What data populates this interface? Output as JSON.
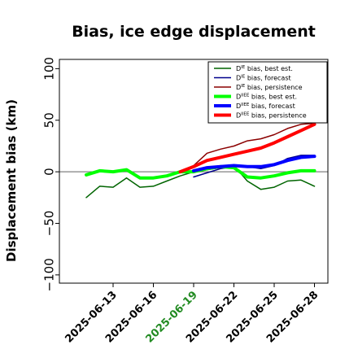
{
  "chart_data": {
    "type": "line",
    "title": "Bias, ice edge displacement",
    "xlabel": "",
    "ylabel": "Displacement bias (km)",
    "ylim": [
      -108,
      109
    ],
    "yticks": [
      -100,
      -50,
      0,
      50,
      100
    ],
    "xlim": [
      "2025-06-09",
      "2025-06-29"
    ],
    "xticks": [
      "2025-06-13",
      "2025-06-16",
      "2025-06-19",
      "2025-06-22",
      "2025-06-25",
      "2025-06-28"
    ],
    "highlighted_xtick": "2025-06-19",
    "highlight_color": "#228b22",
    "zero_line": true,
    "grid": false,
    "legend_position": "top-right",
    "series": [
      {
        "name_main": "D",
        "name_sup": "IE",
        "name_rest": " bias, best est.",
        "color": "#006400",
        "width": 1.5,
        "x": [
          "2025-06-11",
          "2025-06-12",
          "2025-06-13",
          "2025-06-14",
          "2025-06-15",
          "2025-06-16",
          "2025-06-17",
          "2025-06-18",
          "2025-06-19",
          "2025-06-20",
          "2025-06-21",
          "2025-06-22",
          "2025-06-23",
          "2025-06-24",
          "2025-06-25",
          "2025-06-26",
          "2025-06-27",
          "2025-06-28"
        ],
        "y": [
          -25,
          -14,
          -15,
          -6,
          -15,
          -14,
          -9,
          -4,
          0,
          2,
          4,
          6,
          -9,
          -17,
          -15,
          -9,
          -8,
          -14
        ]
      },
      {
        "name_main": "D",
        "name_sup": "IE",
        "name_rest": " bias, forecast",
        "color": "#00008b",
        "width": 1.5,
        "x": [
          "2025-06-19",
          "2025-06-20",
          "2025-06-21",
          "2025-06-22",
          "2025-06-23",
          "2025-06-24",
          "2025-06-25",
          "2025-06-26",
          "2025-06-27",
          "2025-06-28"
        ],
        "y": [
          -5,
          -1,
          3,
          5,
          5,
          3,
          6,
          13,
          16,
          16
        ]
      },
      {
        "name_main": "D",
        "name_sup": "IE",
        "name_rest": " bias, persistence",
        "color": "#8b0000",
        "width": 1.5,
        "x": [
          "2025-06-18",
          "2025-06-19",
          "2025-06-20",
          "2025-06-21",
          "2025-06-22",
          "2025-06-23",
          "2025-06-24",
          "2025-06-25",
          "2025-06-26",
          "2025-06-27",
          "2025-06-28"
        ],
        "y": [
          -1,
          6,
          18,
          22,
          25,
          30,
          32,
          36,
          42,
          46,
          47
        ]
      },
      {
        "name_main": "D",
        "name_sup": "IIEE",
        "name_rest": " bias, best est.",
        "color": "#00ff00",
        "width": 4,
        "x": [
          "2025-06-11",
          "2025-06-12",
          "2025-06-13",
          "2025-06-14",
          "2025-06-15",
          "2025-06-16",
          "2025-06-17",
          "2025-06-18",
          "2025-06-19",
          "2025-06-20",
          "2025-06-21",
          "2025-06-22",
          "2025-06-23",
          "2025-06-24",
          "2025-06-25",
          "2025-06-26",
          "2025-06-27",
          "2025-06-28"
        ],
        "y": [
          -3,
          1,
          0,
          2,
          -6,
          -6,
          -4,
          0,
          0,
          3,
          5,
          4,
          -5,
          -6,
          -4,
          -1,
          1,
          1
        ]
      },
      {
        "name_main": "D",
        "name_sup": "IIEE",
        "name_rest": " bias, forecast",
        "color": "#0000ff",
        "width": 4,
        "x": [
          "2025-06-19",
          "2025-06-20",
          "2025-06-21",
          "2025-06-22",
          "2025-06-23",
          "2025-06-24",
          "2025-06-25",
          "2025-06-26",
          "2025-06-27",
          "2025-06-28"
        ],
        "y": [
          1,
          4,
          5,
          6,
          5,
          5,
          7,
          11,
          14,
          15
        ]
      },
      {
        "name_main": "D",
        "name_sup": "IIEE",
        "name_rest": " bias, persistence",
        "color": "#ff0000",
        "width": 4,
        "x": [
          "2025-06-18",
          "2025-06-19",
          "2025-06-20",
          "2025-06-21",
          "2025-06-22",
          "2025-06-23",
          "2025-06-24",
          "2025-06-25",
          "2025-06-26",
          "2025-06-27",
          "2025-06-28"
        ],
        "y": [
          0,
          5,
          11,
          14,
          17,
          20,
          23,
          28,
          34,
          40,
          46
        ]
      }
    ]
  }
}
